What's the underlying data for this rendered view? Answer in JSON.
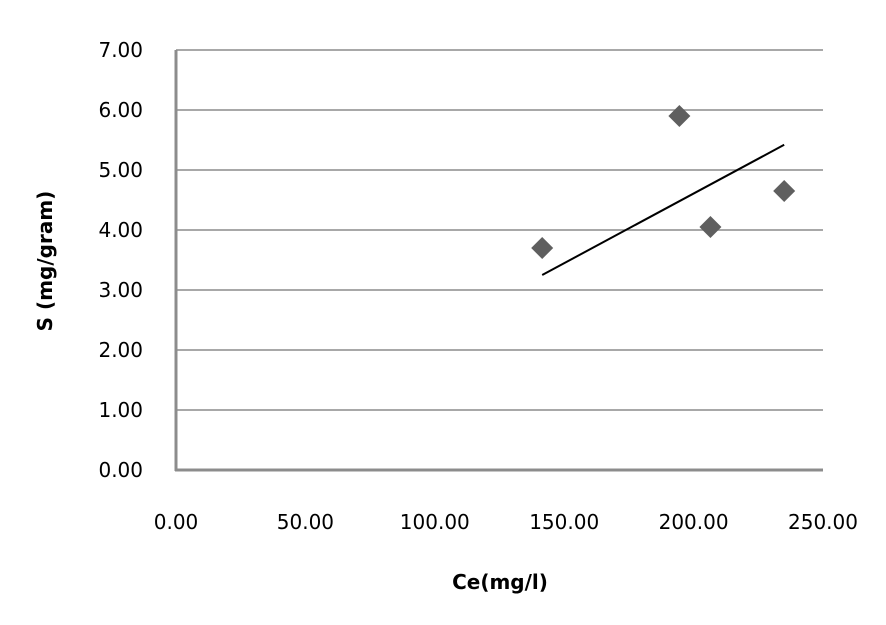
{
  "chart_data": {
    "type": "scatter",
    "xlabel": "Ce(mg/l)",
    "ylabel": "S (mg/gram)",
    "xlim": [
      0,
      250
    ],
    "ylim": [
      0,
      7
    ],
    "x_ticks": [
      "0.00",
      "50.00",
      "100.00",
      "150.00",
      "200.00",
      "250.00"
    ],
    "y_ticks": [
      "0.00",
      "1.00",
      "2.00",
      "3.00",
      "4.00",
      "5.00",
      "6.00",
      "7.00"
    ],
    "grid": "horizontal",
    "legend": "none",
    "series": [
      {
        "points": [
          {
            "x": 141.5,
            "y": 3.7
          },
          {
            "x": 194.5,
            "y": 5.9
          },
          {
            "x": 206.5,
            "y": 4.05
          },
          {
            "x": 235.0,
            "y": 4.65
          }
        ],
        "color": "#5f5f5f",
        "marker": "diamond"
      }
    ],
    "trendline": {
      "type": "linear",
      "from": {
        "x": 141.5,
        "y": 3.25
      },
      "to": {
        "x": 235.0,
        "y": 5.42
      },
      "color": "#000000"
    },
    "colors": {
      "grid": "#8c8c8c",
      "axis": "#8c8c8c"
    }
  }
}
